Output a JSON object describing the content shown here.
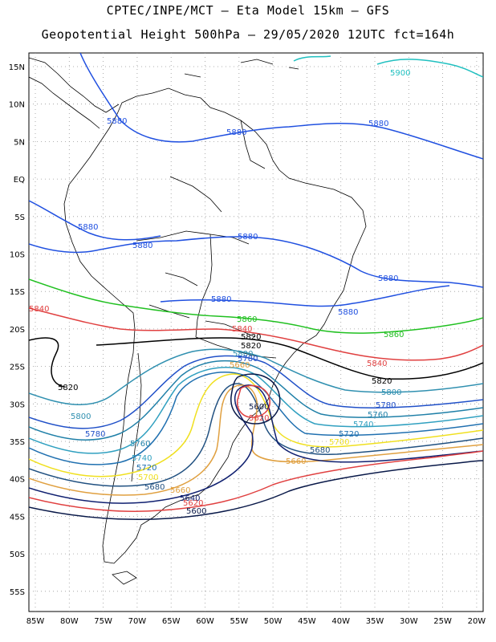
{
  "header": {
    "line1": "CPTEC/INPE/MCT –  Eta Model 15km – GFS",
    "line2": "Geopotential Height 500hPa – 29/05/2020 12UTC fct=164h"
  },
  "axes": {
    "lat_labels": [
      "15N",
      "10N",
      "5N",
      "EQ",
      "5S",
      "10S",
      "15S",
      "20S",
      "25S",
      "30S",
      "35S",
      "40S",
      "45S",
      "50S",
      "55S"
    ],
    "lon_labels": [
      "85W",
      "80W",
      "75W",
      "70W",
      "65W",
      "60W",
      "55W",
      "50W",
      "45W",
      "40W",
      "35W",
      "30W",
      "25W",
      "20W"
    ]
  },
  "contours": {
    "colors": {
      "5900": "#20c0c0",
      "5880": "#2050e0",
      "5860": "#20c020",
      "5840": "#e04040",
      "5820": "#000000",
      "5800": "#3090b0",
      "5780": "#2050c8",
      "5760": "#2080a8",
      "5740": "#30a0c0",
      "5720": "#2070b0",
      "5700": "#f0e020",
      "5680": "#205080",
      "5660": "#e0a040",
      "5640": "#102070",
      "5620": "#e04040",
      "5600": "#081848"
    },
    "labels": [
      {
        "text": "5900",
        "key": "5900"
      },
      {
        "text": "5880",
        "key": "5880"
      },
      {
        "text": "5880",
        "key": "5880"
      },
      {
        "text": "5880",
        "key": "5880"
      },
      {
        "text": "5880",
        "key": "5880"
      },
      {
        "text": "5880",
        "key": "5880"
      },
      {
        "text": "5880",
        "key": "5880"
      },
      {
        "text": "5880",
        "key": "5880"
      },
      {
        "text": "5880",
        "key": "5880"
      },
      {
        "text": "5880",
        "key": "5880"
      },
      {
        "text": "5840",
        "key": "5840"
      },
      {
        "text": "5860",
        "key": "5860"
      },
      {
        "text": "5860",
        "key": "5860"
      },
      {
        "text": "5840",
        "key": "5840"
      },
      {
        "text": "5840",
        "key": "5840"
      },
      {
        "text": "5820",
        "key": "5820"
      },
      {
        "text": "5820",
        "key": "5820"
      },
      {
        "text": "5820",
        "key": "5820"
      },
      {
        "text": "5800",
        "key": "5800"
      },
      {
        "text": "5800",
        "key": "5800"
      },
      {
        "text": "5780",
        "key": "5780"
      },
      {
        "text": "5780",
        "key": "5780"
      },
      {
        "text": "5760",
        "key": "5760"
      },
      {
        "text": "5760",
        "key": "5760"
      },
      {
        "text": "5740",
        "key": "5740"
      },
      {
        "text": "5740",
        "key": "5740"
      },
      {
        "text": "5720",
        "key": "5720"
      },
      {
        "text": "5720",
        "key": "5720"
      },
      {
        "text": "5700",
        "key": "5700"
      },
      {
        "text": "5700",
        "key": "5700"
      },
      {
        "text": "5680",
        "key": "5680"
      },
      {
        "text": "5680",
        "key": "5680"
      },
      {
        "text": "5660",
        "key": "5660"
      },
      {
        "text": "5660",
        "key": "5660"
      },
      {
        "text": "5660",
        "key": "5660"
      },
      {
        "text": "5640",
        "key": "5640"
      },
      {
        "text": "5620",
        "key": "5620"
      },
      {
        "text": "5620",
        "key": "5620"
      },
      {
        "text": "5600",
        "key": "5600"
      },
      {
        "text": "5600",
        "key": "5600"
      },
      {
        "text": "5820",
        "key": "5820"
      },
      {
        "text": "5800",
        "key": "5800"
      },
      {
        "text": "5780",
        "key": "5780"
      }
    ]
  }
}
